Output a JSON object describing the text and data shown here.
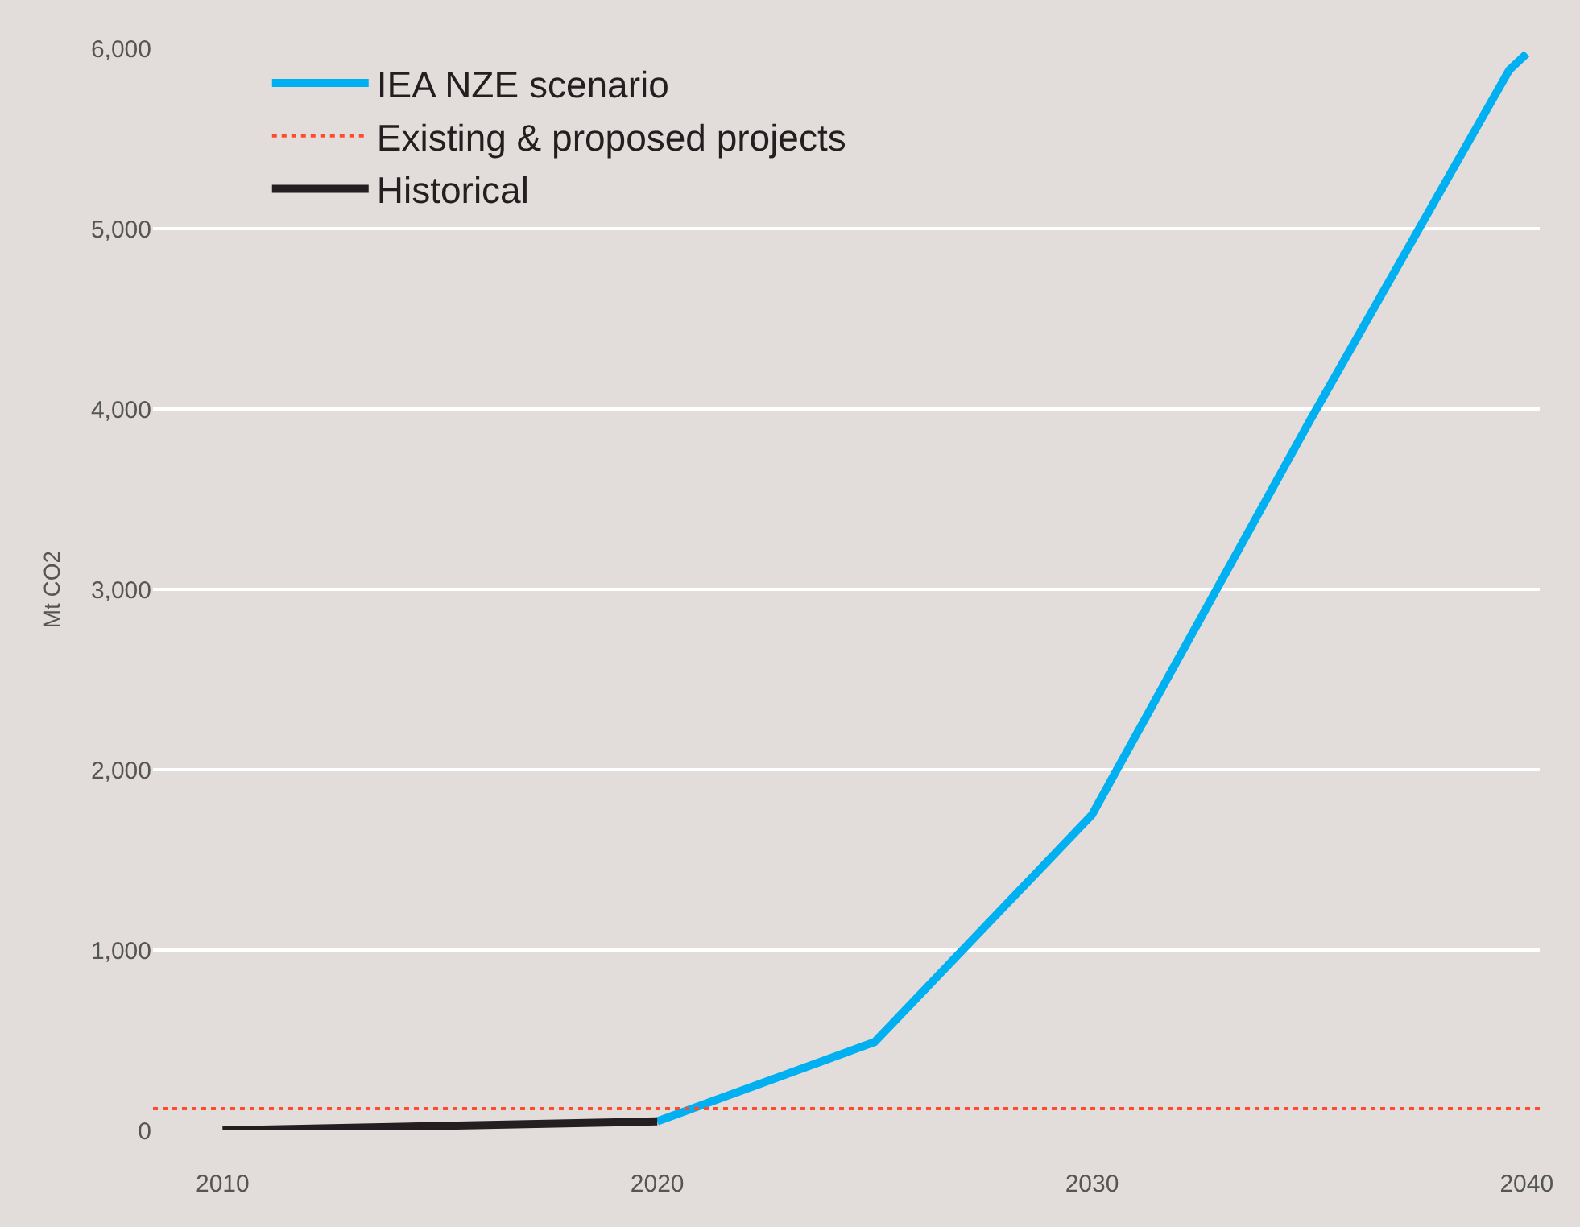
{
  "chart_data": {
    "type": "line",
    "ylabel": "Mt CO2",
    "xlim": [
      2008.4,
      2040.3
    ],
    "xticks": [
      2010,
      2020,
      2030,
      2040
    ],
    "ylim": [
      0,
      6000
    ],
    "yticks": [
      {
        "value": 0,
        "label": "0"
      },
      {
        "value": 1000,
        "label": "1,000"
      },
      {
        "value": 2000,
        "label": "2,000"
      },
      {
        "value": 3000,
        "label": "3,000"
      },
      {
        "value": 4000,
        "label": "4,000"
      },
      {
        "value": 5000,
        "label": "5,000"
      },
      {
        "value": 6000,
        "label": "6,000"
      }
    ],
    "grid": "y",
    "legend": "top left",
    "marker": "none",
    "series": [
      {
        "name": "IEA NZE scenario",
        "color": "#00b0f0",
        "line_style": "solid",
        "x": [
          2020,
          2025,
          2030,
          2035,
          2039.6,
          2040
        ],
        "values": [
          50,
          490,
          1750,
          3930,
          5880,
          5970
        ]
      },
      {
        "name": "Existing & proposed projects",
        "color": "#ff4b2b",
        "line_style": "dotted",
        "x": [
          2008.4,
          2040.3
        ],
        "values": [
          120,
          120
        ]
      },
      {
        "name": "Historical",
        "color": "#231f20",
        "line_style": "solid",
        "x": [
          2010,
          2020
        ],
        "values": [
          0,
          50
        ]
      }
    ]
  }
}
